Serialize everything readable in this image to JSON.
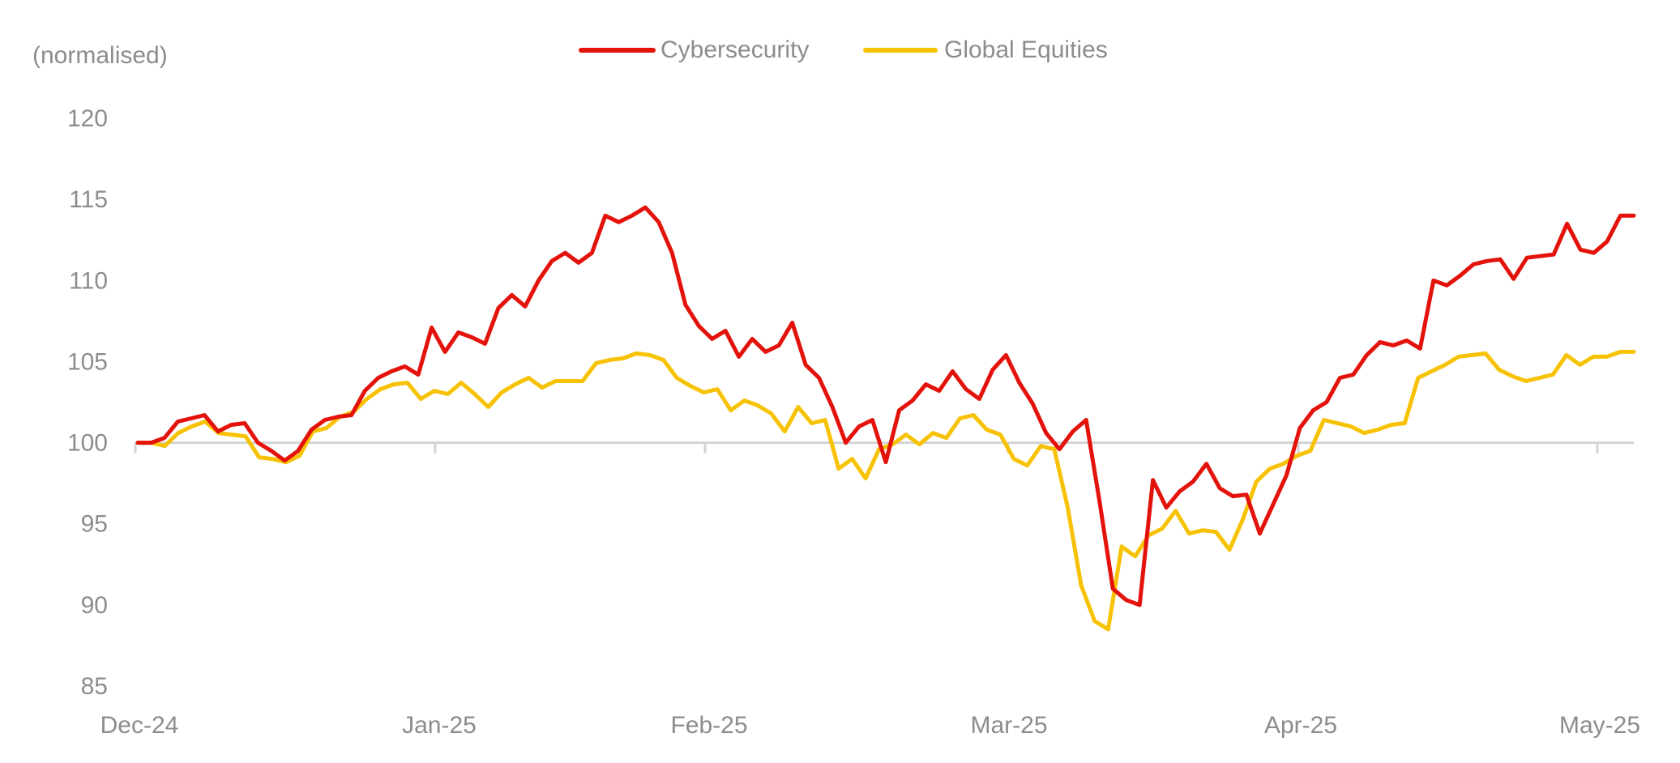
{
  "chart_data": {
    "type": "line",
    "ylabel": "(normalised)",
    "ylim": [
      85,
      120
    ],
    "yticks": [
      85,
      90,
      95,
      100,
      105,
      110,
      115,
      120
    ],
    "xticks": [
      "Dec-24",
      "Jan-25",
      "Feb-25",
      "Mar-25",
      "Apr-25",
      "May-25"
    ],
    "baseline": 100,
    "legend_position": "top-center",
    "series": [
      {
        "name": "Cybersecurity",
        "color": "#e3120b",
        "values": [
          100,
          100,
          100.3,
          101.3,
          101.5,
          101.7,
          100.7,
          101.1,
          101.2,
          100,
          99.5,
          98.9,
          99.5,
          100.8,
          101.4,
          101.6,
          101.7,
          103.2,
          104,
          104.4,
          104.7,
          104.2,
          107.1,
          105.6,
          106.8,
          106.5,
          106.1,
          108.3,
          109.1,
          108.4,
          110,
          111.2,
          111.7,
          111.1,
          111.7,
          114,
          113.6,
          114,
          114.5,
          113.6,
          111.7,
          108.5,
          107.2,
          106.4,
          106.9,
          105.3,
          106.4,
          105.6,
          106,
          107.4,
          104.8,
          104,
          102.2,
          100,
          101,
          101.4,
          98.8,
          102,
          102.6,
          103.6,
          103.2,
          104.4,
          103.3,
          102.7,
          104.5,
          105.4,
          103.7,
          102.4,
          100.6,
          99.6,
          100.7,
          101.4,
          96.4,
          91,
          90.3,
          90,
          97.7,
          96,
          97,
          97.6,
          98.7,
          97.2,
          96.7,
          96.8,
          94.4,
          96.2,
          98,
          100.9,
          102,
          102.5,
          104,
          104.2,
          105.4,
          106.2,
          106,
          106.3,
          105.8,
          110,
          109.7,
          110.3,
          111,
          111.2,
          111.3,
          110.1,
          111.4,
          111.5,
          111.6,
          113.5,
          111.9,
          111.7,
          112.4,
          114,
          114
        ]
      },
      {
        "name": "Global Equities",
        "color": "#f7c204",
        "values": [
          100,
          100,
          99.8,
          100.6,
          101,
          101.3,
          100.6,
          100.5,
          100.4,
          99.1,
          99,
          98.8,
          99.2,
          100.7,
          100.9,
          101.6,
          101.9,
          102.7,
          103.3,
          103.6,
          103.7,
          102.7,
          103.2,
          103,
          103.7,
          103,
          102.2,
          103.1,
          103.6,
          104,
          103.4,
          103.8,
          103.8,
          103.8,
          104.9,
          105.1,
          105.2,
          105.5,
          105.4,
          105.1,
          104,
          103.5,
          103.1,
          103.3,
          102,
          102.6,
          102.3,
          101.8,
          100.7,
          102.2,
          101.2,
          101.4,
          98.4,
          99,
          97.8,
          99.6,
          99.9,
          100.5,
          99.9,
          100.6,
          100.3,
          101.5,
          101.7,
          100.8,
          100.5,
          99,
          98.6,
          99.8,
          99.6,
          96,
          91.2,
          89,
          88.5,
          93.6,
          93,
          94.3,
          94.7,
          95.8,
          94.4,
          94.6,
          94.5,
          93.4,
          95.3,
          97.6,
          98.4,
          98.7,
          99.2,
          99.5,
          101.4,
          101.2,
          101,
          100.6,
          100.8,
          101.1,
          101.2,
          104,
          104.4,
          104.8,
          105.3,
          105.4,
          105.5,
          104.5,
          104.1,
          103.8,
          104,
          104.2,
          105.4,
          104.8,
          105.3,
          105.3,
          105.6,
          105.6
        ]
      }
    ]
  }
}
